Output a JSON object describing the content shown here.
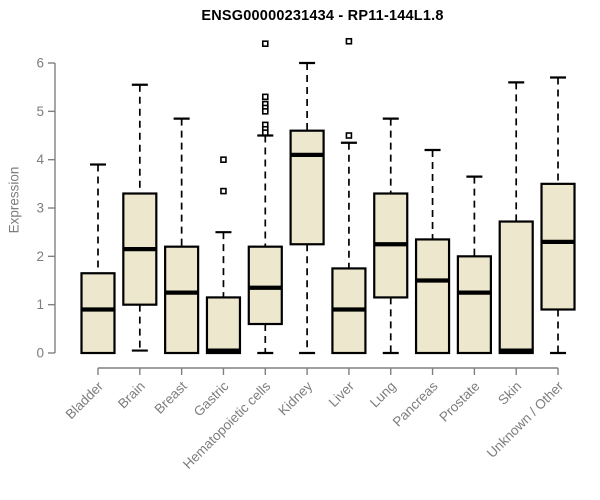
{
  "chart_data": {
    "type": "boxplot",
    "title": "ENSG00000231434 - RP11-144L1.8",
    "ylabel": "Expression",
    "xlabel": "",
    "ylim": [
      0,
      6
    ],
    "yticks": [
      0,
      1,
      2,
      3,
      4,
      5,
      6
    ],
    "grid": "off",
    "legend": "none",
    "categories": [
      "Bladder",
      "Brain",
      "Breast",
      "Gastric",
      "Hematopoietic cells",
      "Kidney",
      "Liver",
      "Lung",
      "Pancreas",
      "Prostate",
      "Skin",
      "Unknown / Other"
    ],
    "boxes": [
      {
        "category": "Bladder",
        "low": 0,
        "q1": 0,
        "median": 0.9,
        "q3": 1.65,
        "high": 3.9,
        "outliers": []
      },
      {
        "category": "Brain",
        "low": 0.05,
        "q1": 1.0,
        "median": 2.15,
        "q3": 3.3,
        "high": 5.55,
        "outliers": []
      },
      {
        "category": "Breast",
        "low": 0,
        "q1": 0,
        "median": 1.25,
        "q3": 2.2,
        "high": 4.85,
        "outliers": []
      },
      {
        "category": "Gastric",
        "low": 0,
        "q1": 0,
        "median": 0.05,
        "q3": 1.15,
        "high": 2.5,
        "outliers": [
          4.0,
          3.35
        ]
      },
      {
        "category": "Hematopoietic cells",
        "low": 0,
        "q1": 0.6,
        "median": 1.35,
        "q3": 2.2,
        "high": 4.5,
        "outliers": [
          6.4,
          5.3,
          5.15,
          5.07,
          5.0,
          4.72,
          4.63,
          4.56
        ]
      },
      {
        "category": "Kidney",
        "low": 0,
        "q1": 2.25,
        "median": 4.1,
        "q3": 4.6,
        "high": 6.0,
        "outliers": []
      },
      {
        "category": "Liver",
        "low": 0,
        "q1": 0,
        "median": 0.9,
        "q3": 1.75,
        "high": 4.35,
        "outliers": [
          6.45,
          4.5
        ]
      },
      {
        "category": "Lung",
        "low": 0,
        "q1": 1.15,
        "median": 2.25,
        "q3": 3.3,
        "high": 4.85,
        "outliers": []
      },
      {
        "category": "Pancreas",
        "low": 0,
        "q1": 0,
        "median": 1.5,
        "q3": 2.35,
        "high": 4.2,
        "outliers": []
      },
      {
        "category": "Prostate",
        "low": 0,
        "q1": 0,
        "median": 1.25,
        "q3": 2.0,
        "high": 3.65,
        "outliers": []
      },
      {
        "category": "Skin",
        "low": 0,
        "q1": 0,
        "median": 0.05,
        "q3": 2.72,
        "high": 5.6,
        "outliers": []
      },
      {
        "category": "Unknown / Other",
        "low": 0,
        "q1": 0.9,
        "median": 2.3,
        "q3": 3.5,
        "high": 5.7,
        "outliers": []
      }
    ],
    "colors": {
      "box_fill": "#ede8cd",
      "box_border": "#000000",
      "median": "#000000",
      "whisker": "#000000",
      "outlier_stroke": "#000000",
      "outlier_fill": "#ffffff",
      "axis": "#808080",
      "tick_label": "#7d7d7d",
      "title": "#000000",
      "background": "#ffffff"
    }
  }
}
